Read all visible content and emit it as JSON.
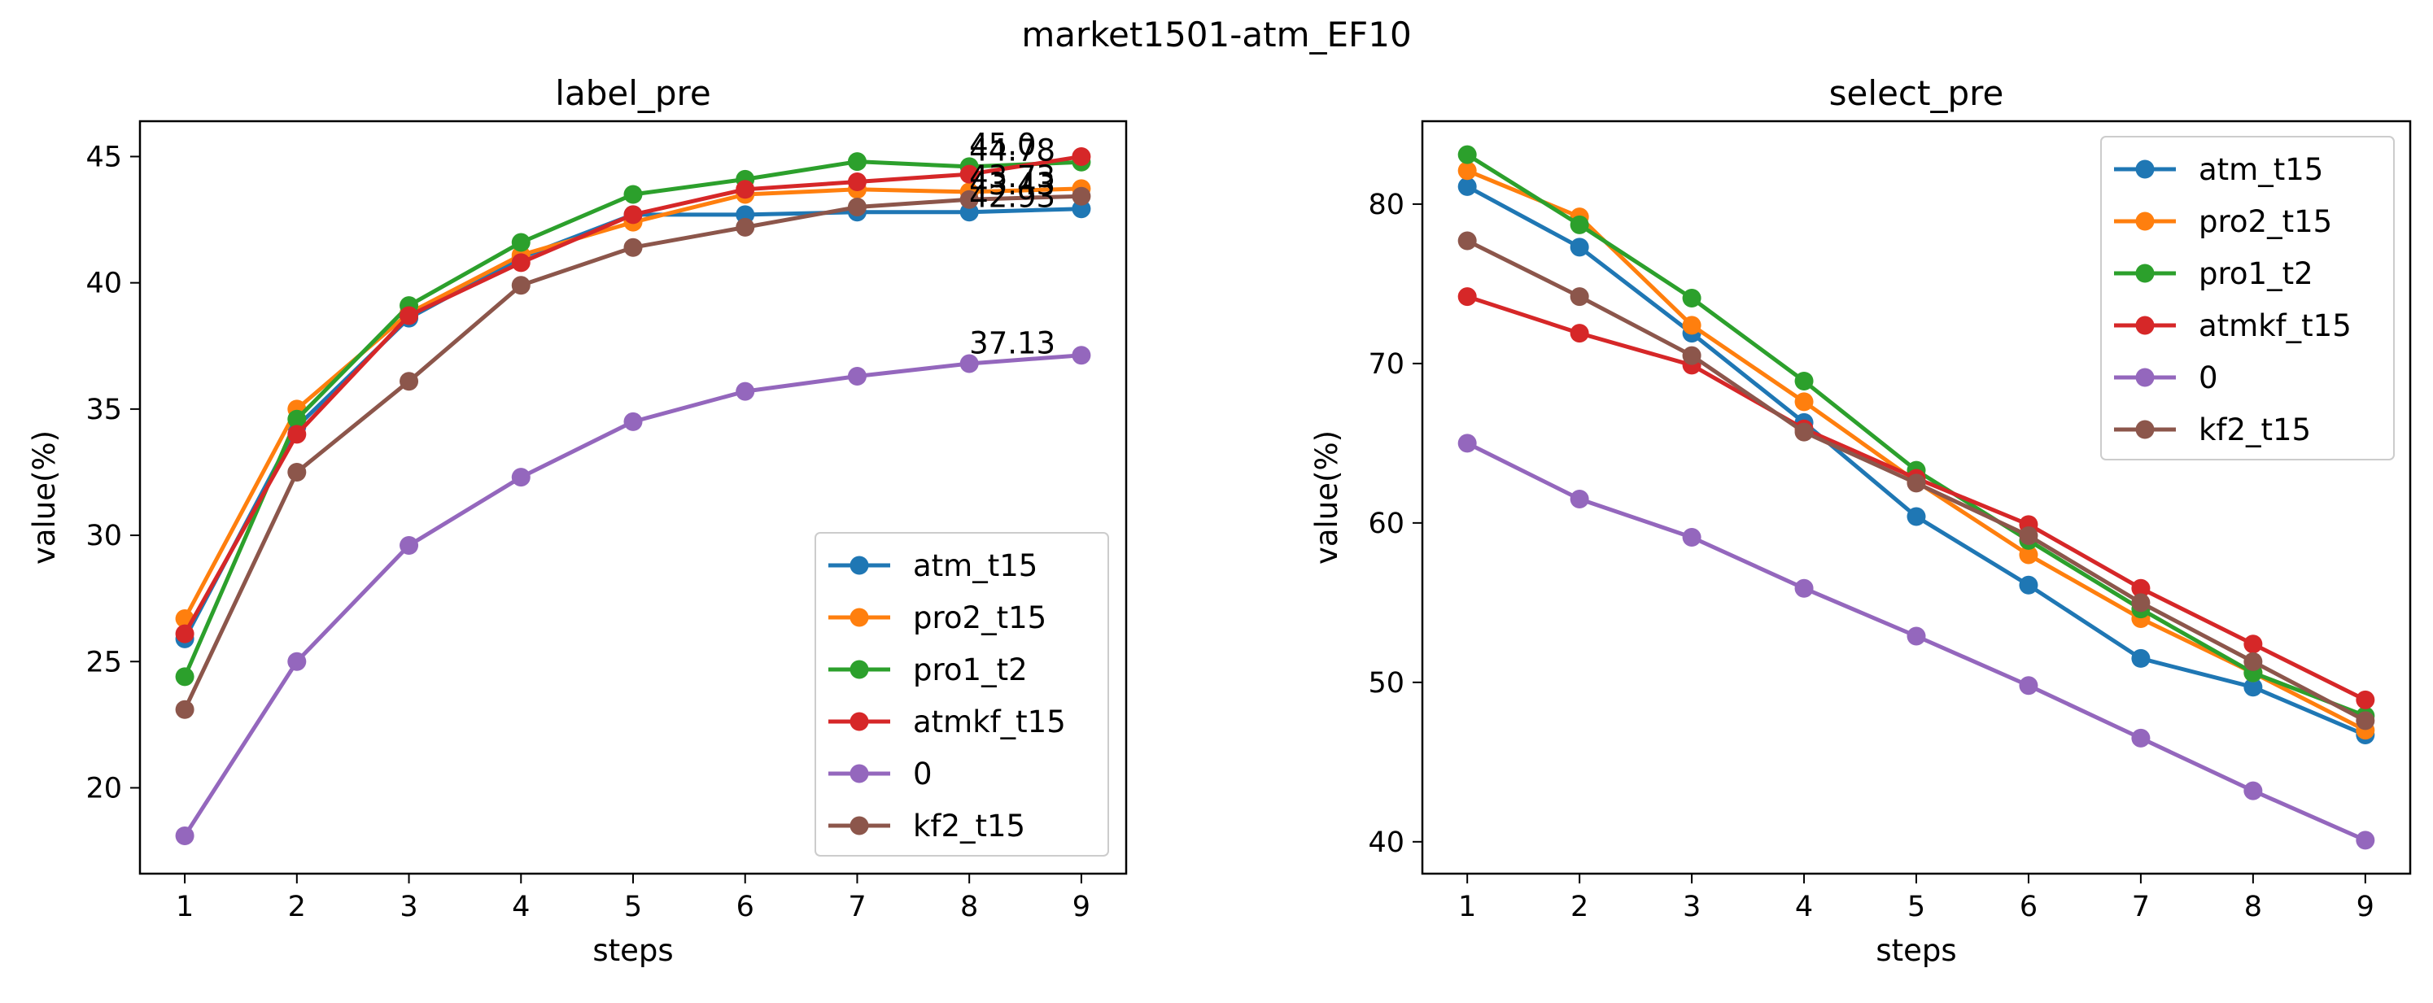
{
  "figure": {
    "title": "market1501-atm_EF10"
  },
  "chart_data": [
    {
      "type": "line",
      "title": "label_pre",
      "xlabel": "steps",
      "ylabel": "value(%)",
      "x": [
        1,
        2,
        3,
        4,
        5,
        6,
        7,
        8,
        9
      ],
      "xticks": [
        "1",
        "2",
        "3",
        "4",
        "5",
        "6",
        "7",
        "8",
        "9"
      ],
      "xlim": [
        0.6,
        9.4
      ],
      "ylim": [
        16.6,
        46.4
      ],
      "yticks": [
        "20",
        "25",
        "30",
        "35",
        "40",
        "45"
      ],
      "grid": false,
      "legend": "lower right",
      "series": [
        {
          "name": "atm_t15",
          "color": "#1f77b4",
          "values": [
            25.9,
            34.3,
            38.6,
            41.0,
            42.7,
            42.7,
            42.8,
            42.8,
            42.93
          ]
        },
        {
          "name": "pro2_t15",
          "color": "#ff7f0e",
          "values": [
            26.7,
            35.0,
            38.8,
            41.1,
            42.4,
            43.5,
            43.7,
            43.6,
            43.73
          ]
        },
        {
          "name": "pro1_t2",
          "color": "#2ca02c",
          "values": [
            24.4,
            34.6,
            39.1,
            41.6,
            43.5,
            44.1,
            44.8,
            44.6,
            44.78
          ]
        },
        {
          "name": "atmkf_t15",
          "color": "#d62728",
          "values": [
            26.1,
            34.0,
            38.7,
            40.8,
            42.7,
            43.7,
            44.0,
            44.3,
            45.0
          ]
        },
        {
          "name": "0",
          "color": "#9467bd",
          "values": [
            18.1,
            25.0,
            29.6,
            32.3,
            34.5,
            35.7,
            36.3,
            36.8,
            37.13
          ]
        },
        {
          "name": "kf2_t15",
          "color": "#8c564b",
          "values": [
            23.1,
            32.5,
            36.1,
            39.9,
            41.4,
            42.2,
            43.0,
            43.3,
            43.43
          ]
        }
      ],
      "annotations": [
        {
          "x": 8,
          "y": 45.0,
          "text": "45.0"
        },
        {
          "x": 8,
          "y": 44.78,
          "text": "44.78"
        },
        {
          "x": 8,
          "y": 43.73,
          "text": "43.73"
        },
        {
          "x": 8,
          "y": 43.43,
          "text": "43.43"
        },
        {
          "x": 8,
          "y": 42.93,
          "text": "42.93"
        },
        {
          "x": 8,
          "y": 37.13,
          "text": "37.13"
        }
      ]
    },
    {
      "type": "line",
      "title": "select_pre",
      "xlabel": "steps",
      "ylabel": "value(%)",
      "x": [
        1,
        2,
        3,
        4,
        5,
        6,
        7,
        8,
        9
      ],
      "xticks": [
        "1",
        "2",
        "3",
        "4",
        "5",
        "6",
        "7",
        "8",
        "9"
      ],
      "xlim": [
        0.6,
        9.4
      ],
      "ylim": [
        38.0,
        85.2
      ],
      "yticks": [
        "40",
        "50",
        "60",
        "70",
        "80"
      ],
      "grid": false,
      "legend": "upper right",
      "series": [
        {
          "name": "atm_t15",
          "color": "#1f77b4",
          "values": [
            81.1,
            77.3,
            71.9,
            66.3,
            60.4,
            56.1,
            51.5,
            49.7,
            46.7
          ]
        },
        {
          "name": "pro2_t15",
          "color": "#ff7f0e",
          "values": [
            82.1,
            79.2,
            72.4,
            67.6,
            62.6,
            58.0,
            54.0,
            50.6,
            47.0
          ]
        },
        {
          "name": "pro1_t2",
          "color": "#2ca02c",
          "values": [
            83.1,
            78.7,
            74.1,
            68.9,
            63.3,
            58.9,
            54.6,
            50.6,
            47.9
          ]
        },
        {
          "name": "atmkf_t15",
          "color": "#d62728",
          "values": [
            74.2,
            71.9,
            69.9,
            65.9,
            62.8,
            59.9,
            55.9,
            52.4,
            48.9
          ]
        },
        {
          "name": "0",
          "color": "#9467bd",
          "values": [
            65.0,
            61.5,
            59.1,
            55.9,
            52.9,
            49.8,
            46.5,
            43.2,
            40.1
          ]
        },
        {
          "name": "kf2_t15",
          "color": "#8c564b",
          "values": [
            77.7,
            74.2,
            70.5,
            65.7,
            62.5,
            59.2,
            55.0,
            51.3,
            47.6
          ]
        }
      ],
      "annotations": []
    }
  ]
}
